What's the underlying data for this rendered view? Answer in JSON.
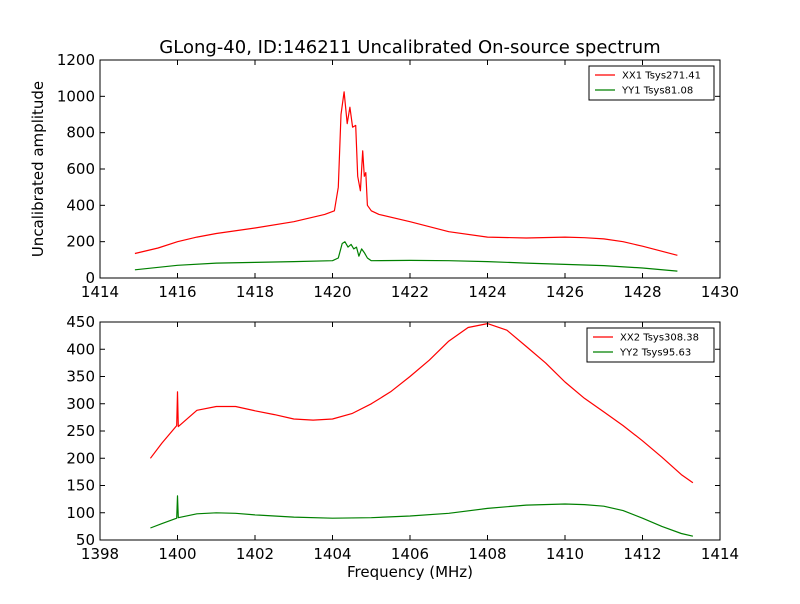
{
  "title": "GLong-40, ID:146211 Uncalibrated On-source spectrum",
  "colors": {
    "red": "#ff0000",
    "green": "#008000",
    "axis": "#000000"
  },
  "chart_data": [
    {
      "type": "line",
      "panel": "top",
      "ylabel": "Uncalibrated amplitude",
      "xlabel": "",
      "xlim": [
        1414,
        1430
      ],
      "ylim": [
        0,
        1200
      ],
      "xticks": [
        1414,
        1416,
        1418,
        1420,
        1422,
        1424,
        1426,
        1428,
        1430
      ],
      "yticks": [
        0,
        200,
        400,
        600,
        800,
        1000,
        1200
      ],
      "legend_position": "top-right",
      "series": [
        {
          "name": "XX1 Tsys271.41",
          "color": "#ff0000",
          "x": [
            1414.9,
            1415.5,
            1416.0,
            1416.5,
            1417.0,
            1418.0,
            1419.0,
            1419.8,
            1420.05,
            1420.15,
            1420.22,
            1420.3,
            1420.38,
            1420.45,
            1420.52,
            1420.6,
            1420.65,
            1420.72,
            1420.78,
            1420.82,
            1420.86,
            1420.9,
            1421.0,
            1421.2,
            1422.0,
            1423.0,
            1424.0,
            1425.0,
            1426.0,
            1426.5,
            1427.0,
            1427.5,
            1428.0,
            1428.9
          ],
          "values": [
            135,
            165,
            200,
            225,
            245,
            275,
            310,
            350,
            370,
            500,
            900,
            1025,
            850,
            940,
            830,
            840,
            560,
            480,
            700,
            560,
            580,
            400,
            370,
            350,
            310,
            255,
            225,
            220,
            225,
            222,
            215,
            200,
            175,
            125
          ]
        },
        {
          "name": "YY1 Tsys81.08",
          "color": "#008000",
          "x": [
            1414.9,
            1416.0,
            1417.0,
            1418.0,
            1419.0,
            1420.0,
            1420.15,
            1420.25,
            1420.32,
            1420.4,
            1420.48,
            1420.55,
            1420.62,
            1420.68,
            1420.75,
            1420.82,
            1420.9,
            1421.0,
            1422.0,
            1423.0,
            1424.0,
            1425.0,
            1426.0,
            1427.0,
            1428.0,
            1428.9
          ],
          "values": [
            45,
            70,
            82,
            86,
            90,
            95,
            110,
            190,
            200,
            170,
            185,
            160,
            170,
            120,
            160,
            140,
            110,
            95,
            97,
            95,
            90,
            82,
            75,
            68,
            55,
            38
          ]
        }
      ]
    },
    {
      "type": "line",
      "panel": "bottom",
      "ylabel": "",
      "xlabel": "Frequency (MHz)",
      "xlim": [
        1398,
        1414
      ],
      "ylim": [
        50,
        450
      ],
      "xticks": [
        1398,
        1400,
        1402,
        1404,
        1406,
        1408,
        1410,
        1412,
        1414
      ],
      "yticks": [
        50,
        100,
        150,
        200,
        250,
        300,
        350,
        400,
        450
      ],
      "legend_position": "top-right",
      "series": [
        {
          "name": "XX2 Tsys308.38",
          "color": "#ff0000",
          "x": [
            1399.3,
            1399.6,
            1399.98,
            1400.0,
            1400.02,
            1400.5,
            1401.0,
            1401.5,
            1402.0,
            1402.5,
            1403.0,
            1403.5,
            1404.0,
            1404.5,
            1405.0,
            1405.5,
            1406.0,
            1406.5,
            1407.0,
            1407.5,
            1408.0,
            1408.5,
            1409.0,
            1409.5,
            1410.0,
            1410.5,
            1411.0,
            1411.5,
            1412.0,
            1412.5,
            1413.0,
            1413.3
          ],
          "values": [
            200,
            228,
            260,
            322,
            258,
            288,
            295,
            295,
            287,
            280,
            272,
            270,
            272,
            282,
            300,
            322,
            350,
            380,
            415,
            440,
            447,
            435,
            405,
            375,
            340,
            310,
            285,
            260,
            232,
            202,
            170,
            155
          ]
        },
        {
          "name": "YY2 Tsys95.63",
          "color": "#008000",
          "x": [
            1399.3,
            1399.6,
            1399.98,
            1400.0,
            1400.02,
            1400.5,
            1401.0,
            1401.5,
            1402.0,
            1403.0,
            1404.0,
            1405.0,
            1406.0,
            1407.0,
            1408.0,
            1409.0,
            1410.0,
            1410.5,
            1411.0,
            1411.5,
            1412.0,
            1412.5,
            1413.0,
            1413.3
          ],
          "values": [
            72,
            80,
            90,
            131,
            91,
            98,
            100,
            99,
            96,
            92,
            90,
            91,
            94,
            99,
            108,
            114,
            116,
            115,
            112,
            104,
            90,
            75,
            62,
            57
          ]
        }
      ]
    }
  ]
}
